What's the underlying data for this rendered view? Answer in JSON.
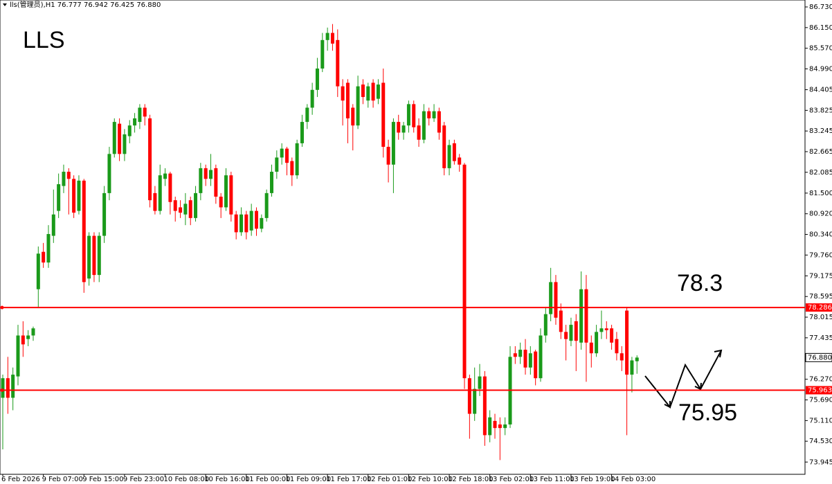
{
  "chart_data": {
    "type": "candlestick",
    "header": "lls(管理员),H1  76.777 76.942 76.425 76.880",
    "title": "LLS",
    "up_color": "#1a9a1a",
    "down_color": "#ff0000",
    "ylim": [
      73.6,
      86.925
    ],
    "yticks": [
      {
        "value": 86.73,
        "label": "86.730"
      },
      {
        "value": 86.15,
        "label": "86.150"
      },
      {
        "value": 85.57,
        "label": "85.570"
      },
      {
        "value": 84.99,
        "label": "84.990"
      },
      84.405,
      83.825,
      83.245,
      82.665,
      82.085,
      {
        "value": 81.5,
        "label": "81.500"
      },
      {
        "value": 80.92,
        "label": "80.920"
      },
      {
        "value": 80.34,
        "label": "80.340"
      },
      {
        "value": 79.76,
        "label": "79.760"
      },
      79.175,
      78.595,
      78.015,
      77.435,
      {
        "value": 76.27,
        "label": "76.270"
      },
      {
        "value": 75.69,
        "label": "75.690"
      },
      {
        "value": 75.11,
        "label": "75.110"
      },
      {
        "value": 74.53,
        "label": "74.530"
      },
      73.945
    ],
    "levels": [
      {
        "value": 78.286,
        "label": "78.286",
        "color": "#ff0000"
      },
      {
        "value": 75.963,
        "label": "75.963",
        "color": "#ff0000"
      }
    ],
    "current_price": {
      "value": 76.88,
      "label": "76.880"
    },
    "annotations": [
      {
        "text": "78.3"
      },
      {
        "text": "75.95"
      }
    ],
    "categories": [
      "6 Feb 2026",
      null,
      null,
      null,
      null,
      null,
      null,
      null,
      "9 Feb 07:00",
      null,
      null,
      null,
      null,
      null,
      null,
      null,
      "9 Feb 15:00",
      null,
      null,
      null,
      null,
      null,
      null,
      null,
      "9 Feb 23:00",
      null,
      null,
      null,
      null,
      null,
      null,
      null,
      "10 Feb 08:00",
      null,
      null,
      null,
      null,
      null,
      null,
      null,
      "10 Feb 16:00",
      null,
      null,
      null,
      null,
      null,
      null,
      null,
      "11 Feb 00:00",
      null,
      null,
      null,
      null,
      null,
      null,
      null,
      "11 Feb 09:00",
      null,
      null,
      null,
      null,
      null,
      null,
      null,
      "11 Feb 17:00",
      null,
      null,
      null,
      null,
      null,
      null,
      null,
      "12 Feb 01:00",
      null,
      null,
      null,
      null,
      null,
      null,
      null,
      "12 Feb 10:00",
      null,
      null,
      null,
      null,
      null,
      null,
      null,
      "12 Feb 18:00",
      null,
      null,
      null,
      null,
      null,
      null,
      null,
      "13 Feb 02:00",
      null,
      null,
      null,
      null,
      null,
      null,
      null,
      "13 Feb 11:00",
      null,
      null,
      null,
      null,
      null,
      null,
      null,
      "13 Feb 19:00",
      null,
      null,
      null,
      null,
      null,
      null,
      null,
      "14 Feb 03:00",
      null,
      null,
      null,
      null,
      null
    ],
    "open": [
      75.75,
      76.3,
      75.75,
      76.35,
      77.5,
      77.4,
      77.5,
      78.8,
      79.85,
      79.55,
      80.3,
      81.0,
      81.7,
      82.1,
      81.9,
      81.0,
      81.85,
      79.1,
      80.3,
      79.2,
      80.3,
      81.5,
      82.6,
      83.45,
      82.6,
      83.1,
      83.4,
      83.5,
      83.9,
      83.6,
      81.5,
      81.0,
      81.9,
      82.05,
      81.3,
      81.1,
      80.9,
      81.3,
      80.8,
      81.5,
      82.2,
      81.9,
      82.2,
      81.4,
      81.1,
      82.0,
      80.9,
      80.4,
      80.9,
      80.45,
      81.0,
      80.5,
      80.8,
      81.5,
      82.1,
      82.5,
      82.75,
      82.4,
      82.0,
      82.9,
      83.5,
      83.9,
      84.4,
      85.0,
      85.8,
      86.0,
      85.8,
      84.5,
      84.6,
      83.9,
      83.4,
      84.55,
      84.1,
      84.6,
      84.15,
      84.6,
      82.8,
      82.3,
      83.5,
      83.2,
      83.4,
      84.0,
      83.4,
      83.0,
      83.8,
      83.6,
      83.8,
      83.4,
      82.2,
      82.9,
      82.5,
      82.3,
      76.3,
      75.3,
      76.0,
      76.35,
      74.7,
      75.1,
      75.0,
      74.9,
      75.0,
      77.0,
      76.9,
      77.1,
      76.6,
      77.05,
      76.3,
      77.5,
      78.1,
      79.0,
      78.2,
      77.6,
      77.35,
      77.9,
      77.3,
      78.8,
      77.3,
      77.0,
      77.6,
      77.7,
      77.7,
      77.4,
      77.0,
      78.2,
      76.4,
      76.777
    ],
    "high": [
      76.4,
      76.9,
      76.6,
      77.8,
      77.9,
      77.65,
      77.75,
      80.0,
      80.1,
      80.6,
      81.6,
      82.05,
      82.3,
      82.2,
      82.0,
      82.0,
      81.9,
      80.4,
      80.4,
      80.4,
      81.7,
      82.8,
      83.6,
      83.6,
      83.3,
      83.55,
      83.75,
      84.0,
      84.0,
      83.7,
      81.7,
      82.3,
      82.2,
      82.1,
      81.4,
      81.3,
      81.5,
      81.4,
      81.7,
      82.35,
      82.3,
      82.6,
      82.3,
      81.5,
      82.2,
      82.1,
      81.0,
      81.1,
      81.0,
      81.2,
      81.1,
      80.9,
      81.6,
      82.3,
      82.7,
      82.9,
      82.8,
      82.5,
      83.0,
      83.7,
      84.0,
      84.6,
      85.3,
      86.0,
      86.15,
      86.25,
      86.1,
      84.7,
      84.7,
      84.0,
      84.8,
      84.7,
      84.6,
      84.7,
      84.7,
      85.0,
      83.0,
      83.6,
      83.7,
      83.5,
      84.1,
      84.1,
      83.6,
      84.0,
      83.9,
      84.0,
      83.9,
      83.5,
      83.0,
      83.0,
      82.6,
      82.35,
      76.4,
      76.6,
      76.7,
      76.5,
      75.4,
      75.3,
      75.2,
      75.2,
      77.2,
      77.2,
      77.3,
      77.4,
      77.2,
      77.1,
      77.7,
      78.3,
      79.4,
      79.2,
      78.4,
      77.8,
      78.0,
      78.1,
      79.3,
      79.2,
      77.5,
      77.8,
      78.2,
      77.9,
      77.8,
      77.6,
      77.2,
      78.3,
      76.9,
      76.942
    ],
    "low": [
      74.3,
      75.3,
      75.4,
      76.1,
      76.9,
      77.2,
      77.35,
      78.3,
      79.4,
      79.4,
      80.1,
      80.8,
      81.5,
      80.9,
      80.8,
      80.9,
      78.7,
      78.9,
      79.0,
      79.0,
      80.1,
      81.3,
      82.5,
      82.4,
      82.4,
      82.9,
      83.2,
      83.3,
      83.4,
      81.1,
      80.9,
      80.9,
      81.7,
      80.9,
      80.7,
      80.8,
      80.6,
      80.6,
      80.7,
      81.3,
      81.7,
      81.7,
      81.2,
      80.8,
      81.0,
      80.7,
      80.2,
      80.3,
      80.2,
      80.3,
      80.3,
      80.4,
      80.7,
      81.4,
      81.9,
      82.3,
      82.0,
      81.7,
      81.9,
      82.8,
      83.3,
      83.7,
      84.2,
      84.9,
      85.5,
      85.5,
      84.2,
      83.4,
      82.9,
      82.7,
      83.3,
      84.0,
      83.9,
      83.9,
      84.0,
      82.5,
      81.8,
      81.5,
      83.0,
      83.0,
      83.2,
      83.2,
      82.8,
      82.9,
      83.4,
      83.5,
      83.0,
      82.0,
      82.0,
      82.3,
      82.1,
      76.0,
      74.6,
      75.1,
      75.8,
      74.4,
      74.5,
      74.6,
      74.0,
      74.7,
      74.9,
      76.7,
      76.7,
      76.4,
      76.4,
      76.1,
      76.2,
      77.3,
      77.9,
      77.8,
      77.4,
      76.8,
      77.2,
      76.5,
      77.1,
      76.2,
      76.6,
      76.9,
      77.4,
      77.4,
      77.1,
      76.8,
      76.5,
      74.7,
      75.9,
      76.425
    ],
    "close": [
      76.3,
      75.75,
      76.4,
      77.5,
      77.25,
      77.5,
      77.7,
      79.8,
      79.55,
      80.35,
      80.9,
      81.75,
      82.1,
      81.9,
      80.95,
      81.85,
      79.0,
      80.3,
      79.2,
      80.3,
      81.5,
      82.6,
      83.5,
      82.6,
      83.15,
      83.4,
      83.6,
      83.9,
      83.65,
      81.3,
      81.0,
      82.0,
      82.05,
      81.25,
      81.0,
      80.95,
      81.2,
      80.8,
      81.5,
      82.2,
      81.9,
      82.15,
      81.4,
      81.1,
      82.0,
      80.9,
      80.4,
      80.9,
      80.4,
      81.0,
      80.5,
      80.8,
      81.5,
      82.1,
      82.5,
      82.75,
      82.35,
      82.0,
      82.9,
      83.5,
      83.9,
      84.4,
      85.0,
      85.8,
      86.0,
      85.7,
      84.5,
      84.1,
      83.6,
      83.4,
      84.5,
      84.2,
      84.5,
      84.1,
      84.55,
      82.8,
      82.3,
      83.5,
      83.2,
      83.4,
      84.0,
      83.35,
      83.0,
      83.8,
      83.6,
      83.8,
      83.2,
      82.2,
      82.85,
      82.4,
      82.3,
      76.3,
      75.3,
      76.0,
      76.35,
      74.7,
      75.2,
      74.9,
      74.9,
      75.0,
      76.9,
      76.9,
      77.1,
      76.6,
      77.0,
      76.3,
      77.5,
      78.1,
      79.0,
      78.0,
      77.6,
      77.4,
      77.8,
      77.35,
      78.8,
      77.3,
      77.0,
      77.6,
      77.7,
      77.65,
      77.3,
      77.0,
      76.8,
      76.4,
      76.8,
      76.88
    ]
  }
}
